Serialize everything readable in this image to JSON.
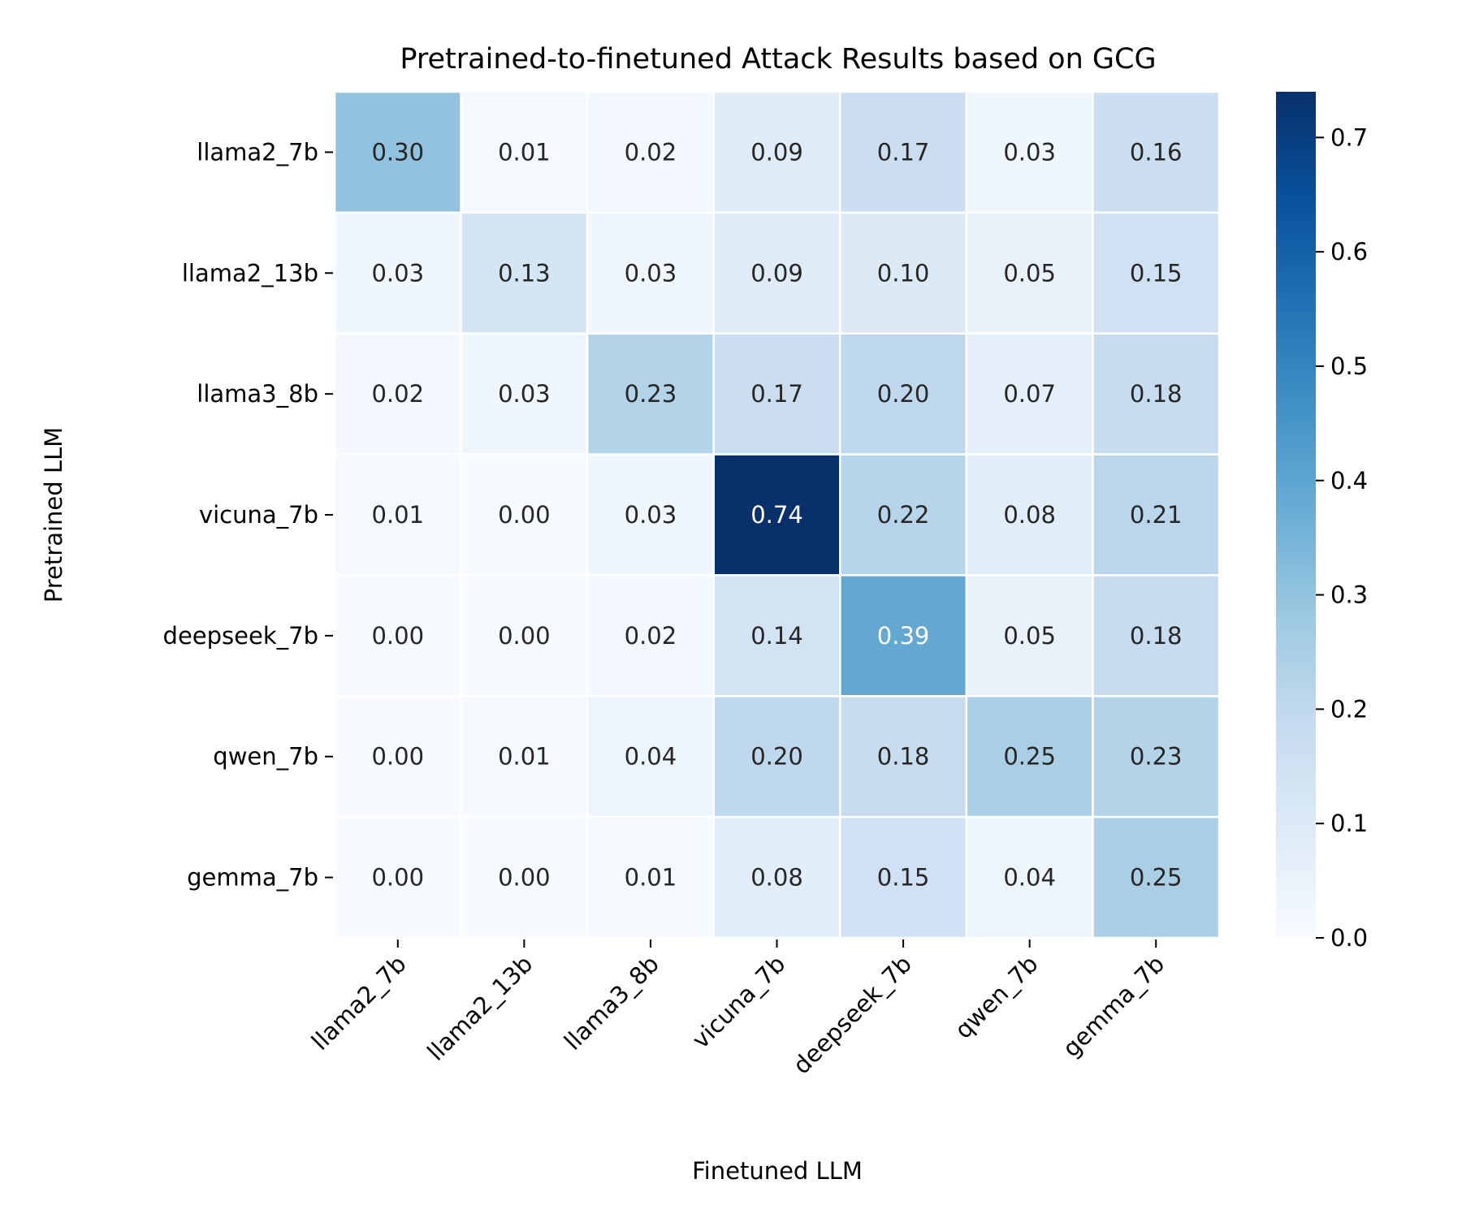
{
  "chart_data": {
    "type": "heatmap",
    "title": "Pretrained-to-finetuned Attack Results based on GCG",
    "xlabel": "Finetuned LLM",
    "ylabel": "Pretrained LLM",
    "x_categories": [
      "llama2_7b",
      "llama2_13b",
      "llama3_8b",
      "vicuna_7b",
      "deepseek_7b",
      "qwen_7b",
      "gemma_7b"
    ],
    "y_categories": [
      "llama2_7b",
      "llama2_13b",
      "llama3_8b",
      "vicuna_7b",
      "deepseek_7b",
      "qwen_7b",
      "gemma_7b"
    ],
    "values": [
      [
        0.3,
        0.01,
        0.02,
        0.09,
        0.17,
        0.03,
        0.16
      ],
      [
        0.03,
        0.13,
        0.03,
        0.09,
        0.1,
        0.05,
        0.15
      ],
      [
        0.02,
        0.03,
        0.23,
        0.17,
        0.2,
        0.07,
        0.18
      ],
      [
        0.01,
        0.0,
        0.03,
        0.74,
        0.22,
        0.08,
        0.21
      ],
      [
        0.0,
        0.0,
        0.02,
        0.14,
        0.39,
        0.05,
        0.18
      ],
      [
        0.0,
        0.01,
        0.04,
        0.2,
        0.18,
        0.25,
        0.23
      ],
      [
        0.0,
        0.0,
        0.01,
        0.08,
        0.15,
        0.04,
        0.25
      ]
    ],
    "colormap": "Blues",
    "colorbar": {
      "range": [
        0,
        0.74
      ],
      "ticks": [
        "0.0",
        "0.1",
        "0.2",
        "0.3",
        "0.4",
        "0.5",
        "0.6",
        "0.7"
      ]
    },
    "annotation_format": "0.00"
  }
}
